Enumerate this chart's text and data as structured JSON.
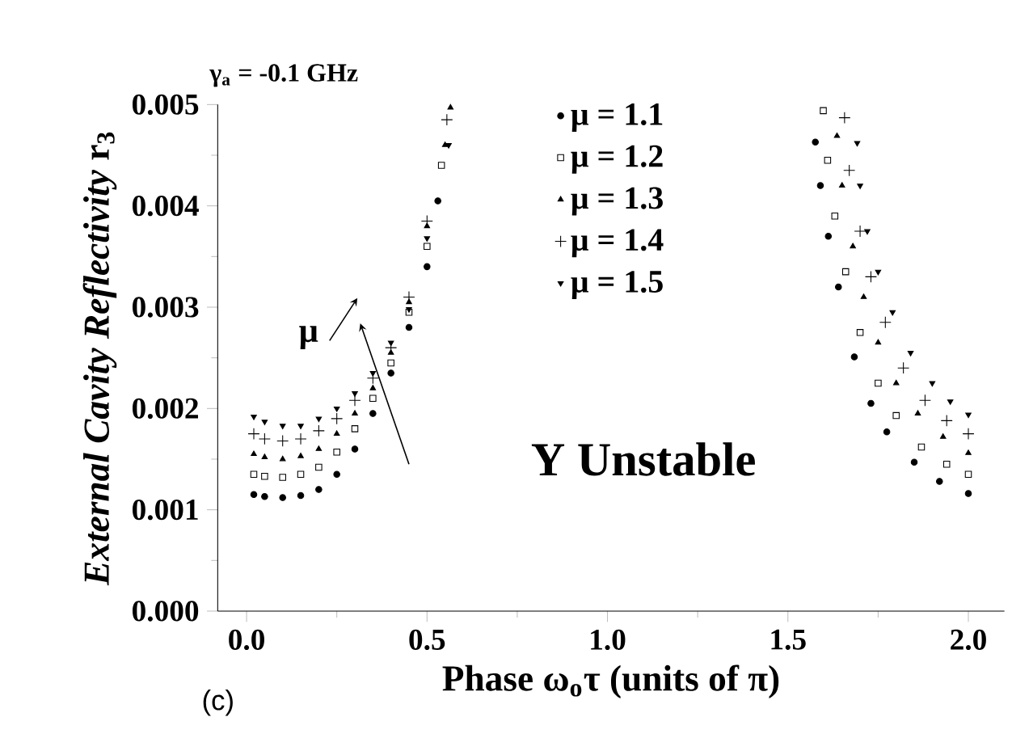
{
  "chart_data": {
    "type": "scatter",
    "xlabel": "Phase ω$_{o}$τ  (units of π)",
    "ylabel": "*External Cavity Reflectivity*  r$_{3}$",
    "annotations": [
      "γ$_{a}$ = -0.1 GHz",
      "μ",
      "Y Unstable",
      "(c)"
    ],
    "xlim": [
      -0.08,
      2.1
    ],
    "ylim": [
      0,
      0.005
    ],
    "xticks": [
      {
        "value": 0,
        "label": "0.0"
      },
      {
        "value": 0.5,
        "label": "0.5"
      },
      {
        "value": 1,
        "label": "1.0"
      },
      {
        "value": 1.5,
        "label": "1.5"
      },
      {
        "value": 2,
        "label": "2.0"
      }
    ],
    "yticks": [
      {
        "value": 0,
        "label": "0.000"
      },
      {
        "value": 0.001,
        "label": "0.001"
      },
      {
        "value": 0.002,
        "label": "0.002"
      },
      {
        "value": 0.003,
        "label": "0.003"
      },
      {
        "value": 0.004,
        "label": "0.004"
      },
      {
        "value": 0.005,
        "label": "0.005"
      }
    ],
    "legend": "top",
    "series": [
      {
        "name": "μ = 1.1",
        "color": "#000000",
        "marker": "circle",
        "x": [
          0.02,
          0.05,
          0.1,
          0.15,
          0.2,
          0.25,
          0.3,
          0.35,
          0.4,
          0.45,
          0.5,
          0.53,
          null,
          1.576,
          1.59,
          1.612,
          1.64,
          1.684,
          1.73,
          1.774,
          1.85,
          1.92,
          2.0
        ],
        "values": [
          0.00115,
          0.00113,
          0.00112,
          0.00114,
          0.0012,
          0.00135,
          0.0016,
          0.00195,
          0.00235,
          0.0028,
          0.0034,
          0.00405,
          null,
          0.00463,
          0.0042,
          0.0037,
          0.0032,
          0.00251,
          0.00205,
          0.00177,
          0.00147,
          0.00128,
          0.00116
        ]
      },
      {
        "name": "μ = 1.2",
        "color": "#000000",
        "marker": "square",
        "x": [
          0.02,
          0.05,
          0.1,
          0.15,
          0.2,
          0.25,
          0.3,
          0.35,
          0.4,
          0.45,
          0.5,
          0.54,
          null,
          1.598,
          1.61,
          1.63,
          1.66,
          1.7,
          1.75,
          1.8,
          1.87,
          1.94,
          2.0
        ],
        "values": [
          0.00135,
          0.00133,
          0.00132,
          0.00135,
          0.00142,
          0.00157,
          0.0018,
          0.0021,
          0.00245,
          0.00295,
          0.0036,
          0.0044,
          null,
          0.00494,
          0.00445,
          0.0039,
          0.00335,
          0.00275,
          0.00225,
          0.00193,
          0.00162,
          0.00145,
          0.00135
        ]
      },
      {
        "name": "μ = 1.3",
        "color": "#000000",
        "marker": "triangle",
        "x": [
          0.02,
          0.05,
          0.1,
          0.15,
          0.2,
          0.25,
          0.3,
          0.35,
          0.4,
          0.45,
          0.5,
          0.55,
          0.565,
          null,
          1.636,
          1.65,
          1.68,
          1.71,
          1.75,
          1.8,
          1.86,
          1.93,
          2.0
        ],
        "values": [
          0.00155,
          0.00152,
          0.0015,
          0.00153,
          0.0016,
          0.00175,
          0.00195,
          0.0022,
          0.00255,
          0.00305,
          0.0038,
          0.0046,
          0.00497,
          null,
          0.00469,
          0.0042,
          0.0036,
          0.0031,
          0.00265,
          0.00225,
          0.00195,
          0.00172,
          0.00156
        ]
      },
      {
        "name": "μ = 1.4",
        "color": "#000000",
        "marker": "cross",
        "x": [
          0.02,
          0.05,
          0.1,
          0.15,
          0.2,
          0.25,
          0.3,
          0.35,
          0.4,
          0.45,
          0.5,
          0.555,
          null,
          1.657,
          1.67,
          1.7,
          1.73,
          1.77,
          1.82,
          1.88,
          1.94,
          2.0
        ],
        "values": [
          0.00175,
          0.0017,
          0.00168,
          0.0017,
          0.00178,
          0.0019,
          0.00208,
          0.0023,
          0.0026,
          0.0031,
          0.00385,
          0.00485,
          null,
          0.00487,
          0.00435,
          0.00375,
          0.0033,
          0.00285,
          0.0024,
          0.00208,
          0.00188,
          0.00175
        ]
      },
      {
        "name": "μ = 1.5",
        "color": "#000000",
        "marker": "triangle",
        "x": [
          0.02,
          0.05,
          0.1,
          0.15,
          0.2,
          0.25,
          0.3,
          0.35,
          0.4,
          0.45,
          0.5,
          0.56,
          null,
          1.692,
          1.7,
          1.72,
          1.75,
          1.79,
          1.84,
          1.9,
          1.95,
          2.0
        ],
        "values": [
          0.00192,
          0.00187,
          0.00183,
          0.00183,
          0.0019,
          0.002,
          0.00215,
          0.00235,
          0.00265,
          0.00298,
          0.00368,
          0.0046,
          null,
          0.00462,
          0.0042,
          0.00375,
          0.00335,
          0.00295,
          0.00255,
          0.00225,
          0.00207,
          0.00194
        ]
      }
    ]
  }
}
